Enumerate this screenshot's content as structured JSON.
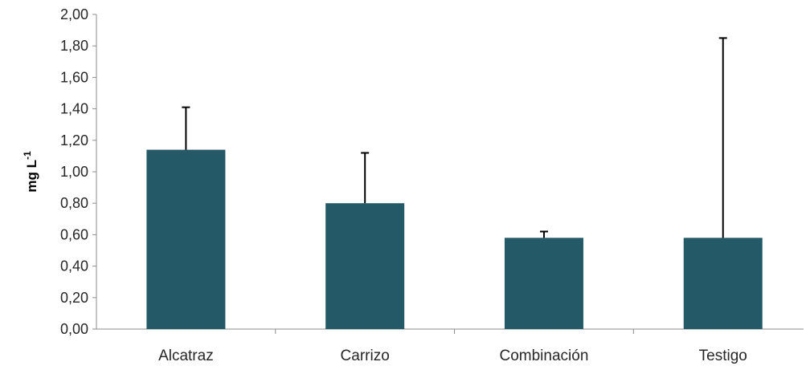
{
  "chart_data": {
    "type": "bar",
    "title": "",
    "xlabel": "",
    "ylabel": "mg L",
    "ylabel_superscript": "-1",
    "ylim": [
      0,
      2
    ],
    "yticks": [
      "0,00",
      "0,20",
      "0,40",
      "0,60",
      "0,80",
      "1,00",
      "1,20",
      "1,40",
      "1,60",
      "1,80",
      "2,00"
    ],
    "categories": [
      "Alcatraz",
      "Carrizo",
      "Combinación",
      "Testigo"
    ],
    "values": [
      1.14,
      0.8,
      0.58,
      0.58
    ],
    "error_upper": [
      1.41,
      1.12,
      0.62,
      1.85
    ],
    "grid": false,
    "legend": "none",
    "bar_color": "#245a67",
    "axis_color": "#8c8c8c",
    "error_bar_color": "#000000"
  }
}
